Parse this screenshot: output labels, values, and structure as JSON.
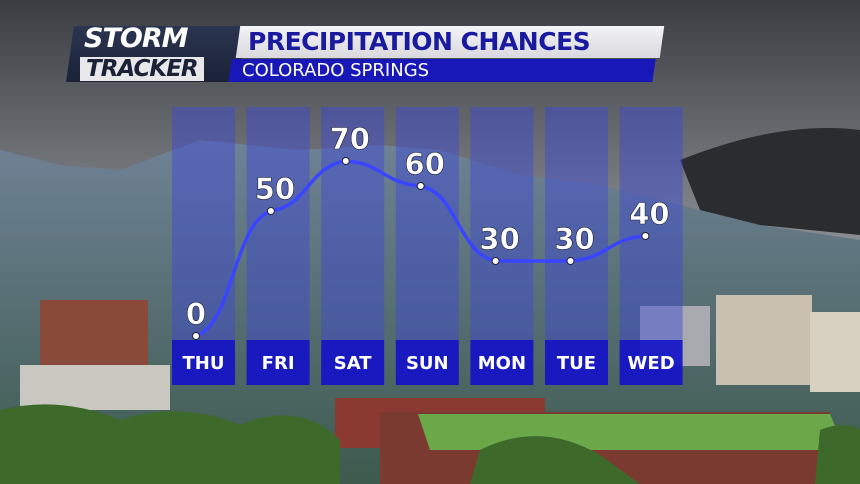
{
  "header": {
    "brand_line1": "STORM",
    "brand_line2": "TRACKER",
    "title": "PRECIPITATION CHANCES",
    "subtitle": "COLORADO SPRINGS"
  },
  "colors": {
    "line": "#3a45ff",
    "column": "#3c46d8",
    "label_box": "#1414c8",
    "title_text": "#1a1aa0"
  },
  "chart_data": {
    "type": "line",
    "title": "PRECIPITATION CHANCES",
    "categories": [
      "THU",
      "FRI",
      "SAT",
      "SUN",
      "MON",
      "TUE",
      "WED"
    ],
    "values": [
      0,
      50,
      70,
      60,
      30,
      30,
      40
    ],
    "data_labels": [
      "0",
      "50",
      "70",
      "60",
      "30",
      "30",
      "40"
    ],
    "ylim": [
      0,
      90
    ],
    "grid": false,
    "legend": "none"
  }
}
